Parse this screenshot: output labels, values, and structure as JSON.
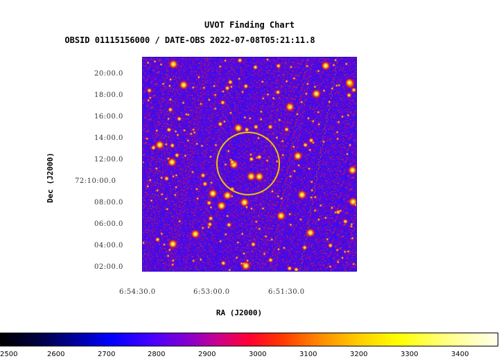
{
  "title": "UVOT Finding Chart",
  "subtitle": "OBSID 01115156000 / DATE-OBS 2022-07-08T05:21:11.8",
  "axes": {
    "xlabel": "RA (J2000)",
    "ylabel": "Dec (J2000)",
    "y_ticks": [
      "20:00.0",
      "18:00.0",
      "16:00.0",
      "14:00.0",
      "12:00.0",
      "72:10:00.0",
      "08:00.0",
      "06:00.0",
      "04:00.0",
      "02:00.0"
    ],
    "x_ticks": [
      "6:54:30.0",
      "6:53:00.0",
      "6:51:30.0"
    ]
  },
  "colorbar": {
    "ticks": [
      "2500",
      "2600",
      "2700",
      "2800",
      "2900",
      "3000",
      "3100",
      "3200",
      "3300",
      "3400"
    ],
    "colors": [
      "#000000",
      "#0000ff",
      "#8800cc",
      "#ff0033",
      "#ff8800",
      "#ffff00",
      "#ffffee"
    ]
  },
  "image": {
    "background_color": "#3b1d9c",
    "region_circle_color": "#f2c400"
  }
}
